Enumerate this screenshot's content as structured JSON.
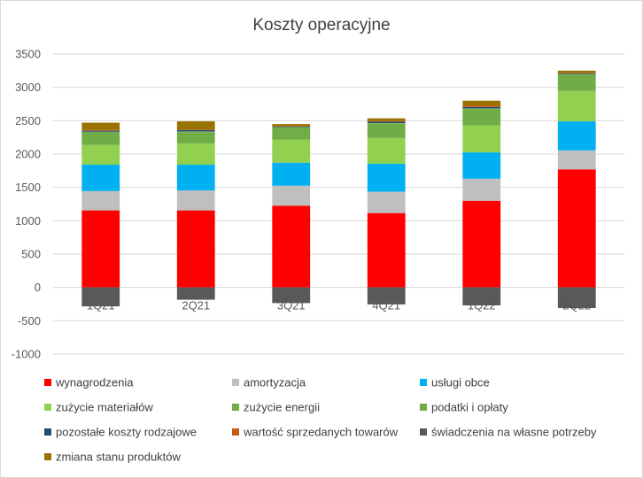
{
  "chart_data": {
    "type": "bar",
    "stacked": true,
    "title": "Koszty operacyjne",
    "xlabel": "",
    "ylabel": "",
    "ylim": [
      -1000,
      3500
    ],
    "y_ticks": [
      3500,
      3000,
      2500,
      2000,
      1500,
      1000,
      500,
      0,
      -500,
      -1000
    ],
    "grid": true,
    "legend_position": "bottom",
    "categories": [
      "1Q21",
      "2Q21",
      "3Q21",
      "4Q21",
      "1Q22",
      "2Q22"
    ],
    "series": [
      {
        "name": "wynagrodzenia",
        "color": "#ff0000",
        "values": [
          1155,
          1155,
          1225,
          1115,
          1300,
          1770
        ]
      },
      {
        "name": "amortyzacja",
        "color": "#bfbfbf",
        "values": [
          290,
          300,
          300,
          320,
          330,
          285
        ]
      },
      {
        "name": "usługi obce",
        "color": "#00b0f0",
        "values": [
          395,
          385,
          345,
          420,
          395,
          435
        ]
      },
      {
        "name": "zużycie materiałów",
        "color": "#92d050",
        "values": [
          295,
          320,
          345,
          385,
          405,
          455
        ]
      },
      {
        "name": "zużycie energii",
        "color": "#70ad47",
        "values": [
          190,
          170,
          180,
          215,
          245,
          245
        ]
      },
      {
        "name": "podatki i opłaty",
        "color": "#70ad47",
        "values": [
          10,
          10,
          10,
          10,
          10,
          10
        ]
      },
      {
        "name": "pozostałe koszty rodzajowe",
        "color": "#1f4e79",
        "values": [
          15,
          20,
          10,
          20,
          20,
          10
        ]
      },
      {
        "name": "wartość sprzedanych towarów",
        "color": "#c55a11",
        "values": [
          10,
          10,
          10,
          10,
          25,
          10
        ]
      },
      {
        "name": "świadczenia na własne potrzeby",
        "color": "#595959",
        "values": [
          -285,
          -185,
          -235,
          -255,
          -270,
          -310
        ]
      },
      {
        "name": "zmiana stanu produktów",
        "color": "#997300",
        "values": [
          110,
          120,
          25,
          40,
          70,
          30
        ]
      }
    ]
  }
}
